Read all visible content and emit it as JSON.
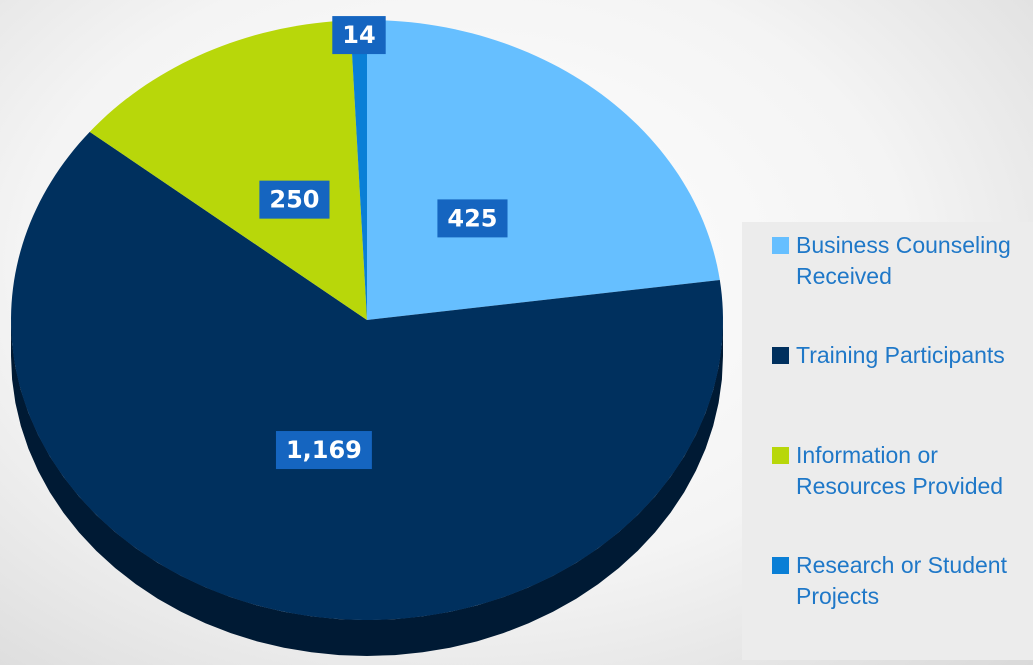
{
  "chart_data": {
    "type": "pie",
    "categories": [
      "Business Counseling Received",
      "Training Participants",
      "Information or Resources Provided",
      "Research or Student Projects"
    ],
    "values": [
      425,
      1169,
      250,
      14
    ],
    "value_labels": [
      "425",
      "1,169",
      "250",
      "14"
    ],
    "colors": [
      "#66bfff",
      "#00305e",
      "#b8d70a",
      "#0a7fd6"
    ],
    "legend": "right"
  }
}
